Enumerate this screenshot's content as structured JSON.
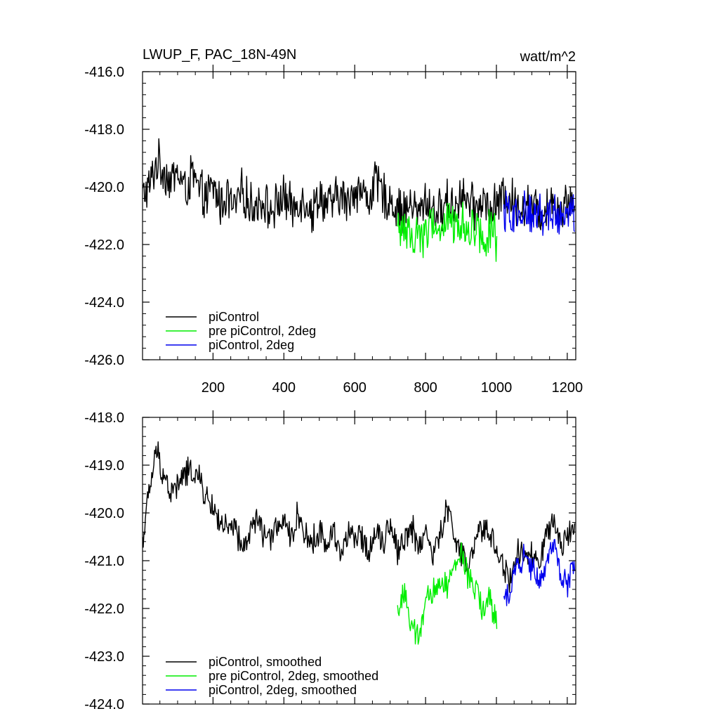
{
  "colors": {
    "background": "#ffffff",
    "axis": "#000000",
    "series": [
      "#000000",
      "#00ee00",
      "#0000ee"
    ]
  },
  "chart_data": [
    {
      "type": "line",
      "title": "LWUP_F, PAC_18N-49N",
      "units": "watt/m^2",
      "xlabel": "",
      "ylabel": "",
      "xlim": [
        1,
        1224
      ],
      "ylim": [
        -426,
        -416
      ],
      "yticks": [
        -426,
        -424,
        -422,
        -420,
        -418,
        -416
      ],
      "ytick_labels": [
        "-426.0",
        "-424.0",
        "-422.0",
        "-420.0",
        "-418.0",
        "-416.0"
      ],
      "xticks": [
        200,
        400,
        600,
        800,
        1000,
        1200
      ],
      "xtick_labels": [
        "200",
        "400",
        "600",
        "800",
        "1000",
        "1200"
      ],
      "legend_position": "bottom-left",
      "series": [
        {
          "name": "piControl",
          "color": "#000000",
          "x_start": 1,
          "x_step": 20,
          "values": [
            -420.3,
            -420.0,
            -419.1,
            -419.4,
            -419.8,
            -419.5,
            -420.1,
            -419.6,
            -420.2,
            -420.4,
            -420.0,
            -420.6,
            -420.3,
            -420.8,
            -420.2,
            -420.5,
            -420.7,
            -420.4,
            -420.9,
            -420.6,
            -420.3,
            -420.8,
            -420.5,
            -420.4,
            -420.9,
            -420.2,
            -420.7,
            -420.5,
            -420.3,
            -420.6,
            -420.0,
            -420.2,
            -420.4,
            -419.8,
            -420.3,
            -420.5,
            -420.7,
            -420.9,
            -420.6,
            -421.0,
            -420.4,
            -420.8,
            -420.9,
            -420.5,
            -420.7,
            -420.2,
            -420.6,
            -420.8,
            -420.4,
            -420.9,
            -420.6,
            -420.3,
            -420.4,
            -420.8,
            -420.5,
            -420.7,
            -420.9,
            -420.6,
            -420.4,
            -420.8,
            -420.5,
            -420.6
          ]
        },
        {
          "name": "pre piControl, 2deg",
          "color": "#00ee00",
          "x_start": 721,
          "x_step": 20,
          "values": [
            -421.6,
            -421.3,
            -421.9,
            -421.5,
            -421.7,
            -421.2,
            -421.6,
            -421.0,
            -421.4,
            -421.2,
            -421.5,
            -421.3,
            -421.8,
            -421.4,
            -421.9
          ]
        },
        {
          "name": "piControl, 2deg",
          "color": "#0000ee",
          "x_start": 1021,
          "x_step": 20,
          "values": [
            -421.0,
            -420.9,
            -421.2,
            -420.8,
            -421.0,
            -420.7,
            -421.1,
            -420.9,
            -421.0,
            -420.6,
            -421.0
          ]
        }
      ]
    },
    {
      "type": "line",
      "title": "",
      "xlabel": "",
      "ylabel": "",
      "xlim": [
        1,
        1224
      ],
      "ylim": [
        -424,
        -418
      ],
      "yticks": [
        -424,
        -423,
        -422,
        -421,
        -420,
        -419,
        -418
      ],
      "ytick_labels": [
        "-424.0",
        "-423.0",
        "-422.0",
        "-421.0",
        "-420.0",
        "-419.0",
        "-418.0"
      ],
      "xticks": [
        200,
        400,
        600,
        800,
        1000,
        1200
      ],
      "legend_position": "bottom-left",
      "series": [
        {
          "name": "piControl, smoothed",
          "color": "#000000",
          "x_start": 1,
          "x_step": 20,
          "values": [
            -420.6,
            -419.5,
            -418.7,
            -419.2,
            -419.6,
            -419.4,
            -419.2,
            -419.1,
            -419.3,
            -419.7,
            -419.9,
            -420.2,
            -420.4,
            -420.3,
            -420.8,
            -420.5,
            -420.1,
            -420.4,
            -420.6,
            -420.2,
            -420.3,
            -420.5,
            -420.0,
            -420.5,
            -420.6,
            -420.4,
            -420.7,
            -420.3,
            -420.9,
            -420.4,
            -420.6,
            -420.5,
            -420.8,
            -420.3,
            -420.6,
            -420.2,
            -420.8,
            -420.5,
            -420.3,
            -420.7,
            -420.4,
            -420.9,
            -420.5,
            -419.9,
            -420.4,
            -420.9,
            -421.2,
            -420.6,
            -420.3,
            -420.4,
            -420.8,
            -421.1,
            -421.5,
            -420.7,
            -421.0,
            -420.9,
            -421.1,
            -420.5,
            -420.2,
            -420.8,
            -420.4,
            -420.1
          ]
        },
        {
          "name": "pre piControl, 2deg, smoothed",
          "color": "#00ee00",
          "x_start": 721,
          "x_step": 20,
          "values": [
            -422.1,
            -421.6,
            -422.5,
            -422.6,
            -421.9,
            -421.7,
            -421.4,
            -421.5,
            -421.2,
            -420.8,
            -421.4,
            -421.6,
            -422.0,
            -421.8,
            -422.4
          ]
        },
        {
          "name": "piControl, 2deg, smoothed",
          "color": "#0000ee",
          "x_start": 1021,
          "x_step": 20,
          "values": [
            -421.9,
            -421.5,
            -421.0,
            -420.9,
            -421.2,
            -421.4,
            -421.0,
            -420.6,
            -421.3,
            -421.5,
            -421.1
          ]
        }
      ]
    }
  ]
}
